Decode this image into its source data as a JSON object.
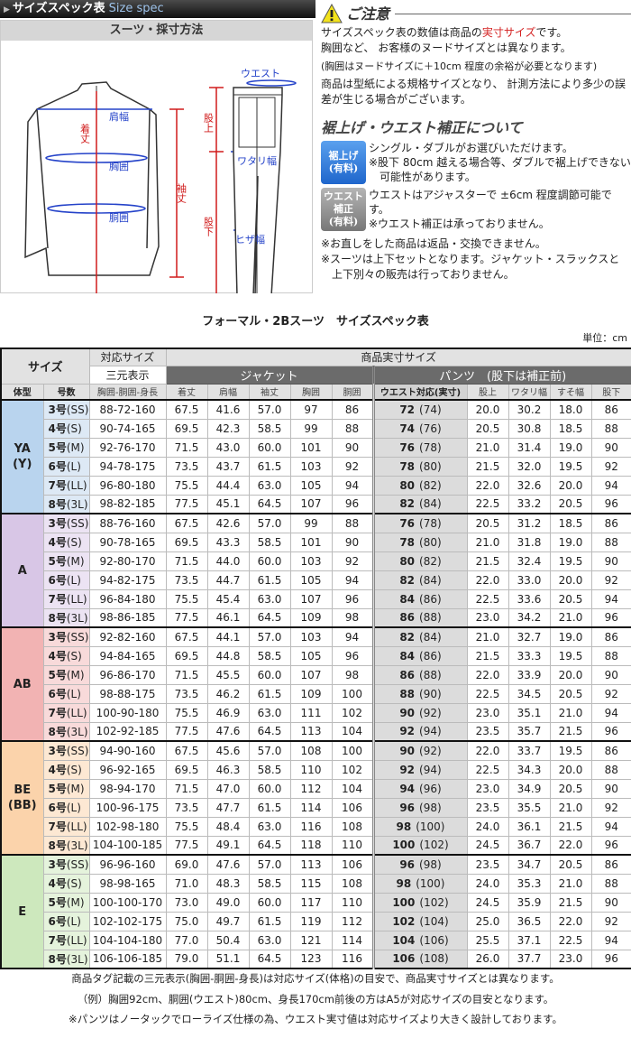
{
  "header": {
    "title_jp": "サイズスペック表",
    "title_en": "Size spec"
  },
  "diagram": {
    "title": "スーツ・採寸方法",
    "labels": {
      "shoulder": "肩幅",
      "length": "着丈",
      "chest": "胸囲",
      "waist_j": "胴囲",
      "sleeve": "袖丈",
      "waist": "ウエスト",
      "rise": "股上",
      "thigh": "ワタリ幅",
      "inseam": "股下",
      "knee": "ヒザ幅"
    }
  },
  "notes": {
    "caution_title": "ご注意",
    "line1_a": "サイズスペック表の数値は商品の",
    "line1_red": "実寸サイズ",
    "line1_b": "です。",
    "line2": "胸囲など、 お客様のヌードサイズとは異なります。",
    "line3": "(胸囲はヌードサイズに＋10cm 程度の余裕が必要となります)",
    "line4": "商品は型紙による規格サイズとなり、 計測方法により多少の誤差が生じる場合がございます。",
    "alter_title": "裾上げ・ウエスト補正について",
    "hem_badge": [
      "裾上げ",
      "(有料)"
    ],
    "hem_text": [
      "シングル・ダブルがお選びいただけます。",
      "※股下 80cm 越える場合等、ダブルで裾上げできない",
      "　可能性があります。"
    ],
    "waist_badge": [
      "ウエスト",
      "補正",
      "(有料)"
    ],
    "waist_text": [
      "ウエストはアジャスターで ±6cm 程度調節可能です。",
      "※ウエスト補正は承っておりません。"
    ],
    "final": [
      "※お直しをした商品は返品・交換できません。",
      "※スーツは上下セットとなります。ジャケット・スラックスと",
      "　上下別々の販売は行っておりません。"
    ]
  },
  "table": {
    "title": "フォーマル・2Bスーツ　サイズスペック表",
    "unit": "単位：cm",
    "h_size": "サイズ",
    "h_fit": "対応サイズ",
    "h_actual": "商品実寸サイズ",
    "h_three": "三元表示",
    "h_jacket": "ジャケット",
    "h_pants": "パンツ　(股下は補正前)",
    "cols": [
      "体型",
      "号数",
      "胸囲-胴囲-身長",
      "着丈",
      "肩幅",
      "袖丈",
      "胸囲",
      "胴囲",
      "ウエスト対応(実寸)",
      "股上",
      "ワタリ幅",
      "すそ幅",
      "股下"
    ],
    "groups": [
      {
        "type": "YA\n(Y)",
        "color": "#b9d4ee",
        "color2": "#dde9f5",
        "rows": [
          [
            "3号",
            "(SS)",
            "88-72-160",
            "67.5",
            "41.6",
            "57.0",
            "97",
            "86",
            "72",
            "(74)",
            "20.0",
            "30.2",
            "18.0",
            "86"
          ],
          [
            "4号",
            "(S)",
            "90-74-165",
            "69.5",
            "42.3",
            "58.5",
            "99",
            "88",
            "74",
            "(76)",
            "20.5",
            "30.8",
            "18.5",
            "88"
          ],
          [
            "5号",
            "(M)",
            "92-76-170",
            "71.5",
            "43.0",
            "60.0",
            "101",
            "90",
            "76",
            "(78)",
            "21.0",
            "31.4",
            "19.0",
            "90"
          ],
          [
            "6号",
            "(L)",
            "94-78-175",
            "73.5",
            "43.7",
            "61.5",
            "103",
            "92",
            "78",
            "(80)",
            "21.5",
            "32.0",
            "19.5",
            "92"
          ],
          [
            "7号",
            "(LL)",
            "96-80-180",
            "75.5",
            "44.4",
            "63.0",
            "105",
            "94",
            "80",
            "(82)",
            "22.0",
            "32.6",
            "20.0",
            "94"
          ],
          [
            "8号",
            "(3L)",
            "98-82-185",
            "77.5",
            "45.1",
            "64.5",
            "107",
            "96",
            "82",
            "(84)",
            "22.5",
            "33.2",
            "20.5",
            "96"
          ]
        ]
      },
      {
        "type": "A",
        "color": "#d8c6e6",
        "color2": "#ece3f3",
        "rows": [
          [
            "3号",
            "(SS)",
            "88-76-160",
            "67.5",
            "42.6",
            "57.0",
            "99",
            "88",
            "76",
            "(78)",
            "20.5",
            "31.2",
            "18.5",
            "86"
          ],
          [
            "4号",
            "(S)",
            "90-78-165",
            "69.5",
            "43.3",
            "58.5",
            "101",
            "90",
            "78",
            "(80)",
            "21.0",
            "31.8",
            "19.0",
            "88"
          ],
          [
            "5号",
            "(M)",
            "92-80-170",
            "71.5",
            "44.0",
            "60.0",
            "103",
            "92",
            "80",
            "(82)",
            "21.5",
            "32.4",
            "19.5",
            "90"
          ],
          [
            "6号",
            "(L)",
            "94-82-175",
            "73.5",
            "44.7",
            "61.5",
            "105",
            "94",
            "82",
            "(84)",
            "22.0",
            "33.0",
            "20.0",
            "92"
          ],
          [
            "7号",
            "(LL)",
            "96-84-180",
            "75.5",
            "45.4",
            "63.0",
            "107",
            "96",
            "84",
            "(86)",
            "22.5",
            "33.6",
            "20.5",
            "94"
          ],
          [
            "8号",
            "(3L)",
            "98-86-185",
            "77.5",
            "46.1",
            "64.5",
            "109",
            "98",
            "86",
            "(88)",
            "23.0",
            "34.2",
            "21.0",
            "96"
          ]
        ]
      },
      {
        "type": "AB",
        "color": "#f2b3b3",
        "color2": "#f8dada",
        "rows": [
          [
            "3号",
            "(SS)",
            "92-82-160",
            "67.5",
            "44.1",
            "57.0",
            "103",
            "94",
            "82",
            "(84)",
            "21.0",
            "32.7",
            "19.0",
            "86"
          ],
          [
            "4号",
            "(S)",
            "94-84-165",
            "69.5",
            "44.8",
            "58.5",
            "105",
            "96",
            "84",
            "(86)",
            "21.5",
            "33.3",
            "19.5",
            "88"
          ],
          [
            "5号",
            "(M)",
            "96-86-170",
            "71.5",
            "45.5",
            "60.0",
            "107",
            "98",
            "86",
            "(88)",
            "22.0",
            "33.9",
            "20.0",
            "90"
          ],
          [
            "6号",
            "(L)",
            "98-88-175",
            "73.5",
            "46.2",
            "61.5",
            "109",
            "100",
            "88",
            "(90)",
            "22.5",
            "34.5",
            "20.5",
            "92"
          ],
          [
            "7号",
            "(LL)",
            "100-90-180",
            "75.5",
            "46.9",
            "63.0",
            "111",
            "102",
            "90",
            "(92)",
            "23.0",
            "35.1",
            "21.0",
            "94"
          ],
          [
            "8号",
            "(3L)",
            "102-92-185",
            "77.5",
            "47.6",
            "64.5",
            "113",
            "104",
            "92",
            "(94)",
            "23.5",
            "35.7",
            "21.5",
            "96"
          ]
        ]
      },
      {
        "type": "BE\n(BB)",
        "color": "#fbd3ab",
        "color2": "#fde8d3",
        "rows": [
          [
            "3号",
            "(SS)",
            "94-90-160",
            "67.5",
            "45.6",
            "57.0",
            "108",
            "100",
            "90",
            "(92)",
            "22.0",
            "33.7",
            "19.5",
            "86"
          ],
          [
            "4号",
            "(S)",
            "96-92-165",
            "69.5",
            "46.3",
            "58.5",
            "110",
            "102",
            "92",
            "(94)",
            "22.5",
            "34.3",
            "20.0",
            "88"
          ],
          [
            "5号",
            "(M)",
            "98-94-170",
            "71.5",
            "47.0",
            "60.0",
            "112",
            "104",
            "94",
            "(96)",
            "23.0",
            "34.9",
            "20.5",
            "90"
          ],
          [
            "6号",
            "(L)",
            "100-96-175",
            "73.5",
            "47.7",
            "61.5",
            "114",
            "106",
            "96",
            "(98)",
            "23.5",
            "35.5",
            "21.0",
            "92"
          ],
          [
            "7号",
            "(LL)",
            "102-98-180",
            "75.5",
            "48.4",
            "63.0",
            "116",
            "108",
            "98",
            "(100)",
            "24.0",
            "36.1",
            "21.5",
            "94"
          ],
          [
            "8号",
            "(3L)",
            "104-100-185",
            "77.5",
            "49.1",
            "64.5",
            "118",
            "110",
            "100",
            "(102)",
            "24.5",
            "36.7",
            "22.0",
            "96"
          ]
        ]
      },
      {
        "type": "E",
        "color": "#cde8bd",
        "color2": "#e5f3dc",
        "rows": [
          [
            "3号",
            "(SS)",
            "96-96-160",
            "69.0",
            "47.6",
            "57.0",
            "113",
            "106",
            "96",
            "(98)",
            "23.5",
            "34.7",
            "20.5",
            "86"
          ],
          [
            "4号",
            "(S)",
            "98-98-165",
            "71.0",
            "48.3",
            "58.5",
            "115",
            "108",
            "98",
            "(100)",
            "24.0",
            "35.3",
            "21.0",
            "88"
          ],
          [
            "5号",
            "(M)",
            "100-100-170",
            "73.0",
            "49.0",
            "60.0",
            "117",
            "110",
            "100",
            "(102)",
            "24.5",
            "35.9",
            "21.5",
            "90"
          ],
          [
            "6号",
            "(L)",
            "102-102-175",
            "75.0",
            "49.7",
            "61.5",
            "119",
            "112",
            "102",
            "(104)",
            "25.0",
            "36.5",
            "22.0",
            "92"
          ],
          [
            "7号",
            "(LL)",
            "104-104-180",
            "77.0",
            "50.4",
            "63.0",
            "121",
            "114",
            "104",
            "(106)",
            "25.5",
            "37.1",
            "22.5",
            "94"
          ],
          [
            "8号",
            "(3L)",
            "106-106-185",
            "79.0",
            "51.1",
            "64.5",
            "123",
            "116",
            "106",
            "(108)",
            "26.0",
            "37.7",
            "23.0",
            "96"
          ]
        ]
      }
    ]
  },
  "footer": [
    "商品タグ記載の三元表示(胸囲-胴囲-身長)は対応サイズ(体格)の目安で、商品実寸サイズとは異なります。",
    "（例）胸囲92cm、胴囲(ウエスト)80cm、身長170cm前後の方はA5が対応サイズの目安となります。",
    "※パンツはノータックでローライズ仕様の為、ウエスト実寸値は対応サイズより大きく設計しております。"
  ]
}
